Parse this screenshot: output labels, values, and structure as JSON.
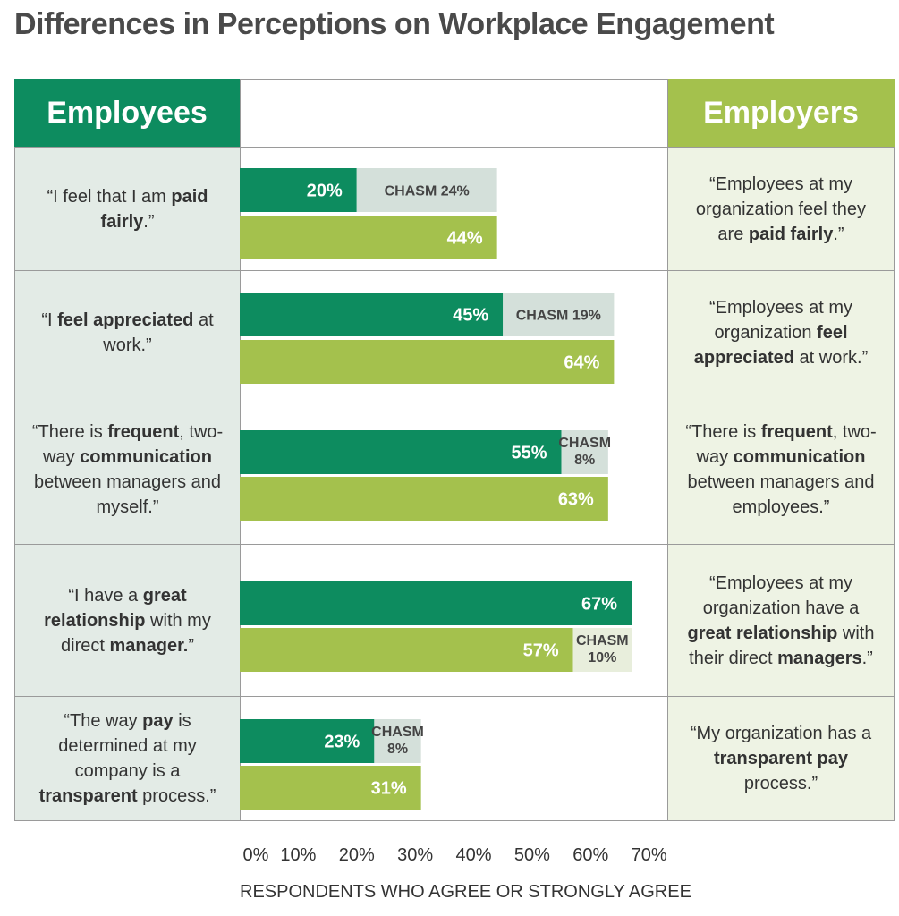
{
  "title": "Differences in Perceptions on Workplace Engagement",
  "headers": {
    "left": "Employees",
    "right": "Employers"
  },
  "rows": [
    {
      "employee_html": "“I feel that I am <b>paid fairly</b>.”",
      "employer_html": "“Employees at my organization feel they are <b>paid fairly</b>.”"
    },
    {
      "employee_html": "“I <b>feel appreciated</b> at work.”",
      "employer_html": "“Employees at my organization <b>feel appreciated</b> at work.”"
    },
    {
      "employee_html": "“There is <b>frequent</b>, two-way <b>communication</b> between managers and myself.”",
      "employer_html": "“There is <b>frequent</b>, two-way <b>communication</b> between managers and employees.”"
    },
    {
      "employee_html": "“I have a <b>great relationship</b> with my direct <b>manager.</b>”",
      "employer_html": "“Employees at my organization have a <b>great relationship</b> with their direct <b>managers</b>.”"
    },
    {
      "employee_html": "“The way <b>pay</b> is determined at my company is a <b>transparent</b> process.”",
      "employer_html": "“My organization has a <b>transparent pay</b> process.”"
    }
  ],
  "colors": {
    "employees": "#0d8c5f",
    "employers": "#a4c14d",
    "chasm": "#d4e0da",
    "chasm_light": "#e8eedc"
  },
  "chart_data": {
    "type": "bar",
    "orientation": "horizontal",
    "categories": [
      "“I feel that I am paid fairly.”",
      "“I feel appreciated at work.”",
      "“There is frequent, two-way communication between managers and myself.”",
      "“I have a great relationship with my direct manager.”",
      "“The way pay is determined at my company is a transparent process.”"
    ],
    "series": [
      {
        "name": "Employees",
        "values": [
          20,
          45,
          55,
          67,
          23
        ],
        "labels": [
          "20%",
          "45%",
          "55%",
          "67%",
          "23%"
        ]
      },
      {
        "name": "Employers",
        "values": [
          44,
          64,
          63,
          57,
          31
        ],
        "labels": [
          "44%",
          "64%",
          "63%",
          "57%",
          "31%"
        ]
      }
    ],
    "chasm": [
      {
        "value": 24,
        "label": "CHASM 24%"
      },
      {
        "value": 19,
        "label": "CHASM 19%"
      },
      {
        "value": 8,
        "label": "CHASM 8%"
      },
      {
        "value": 10,
        "label": "CHASM 10%"
      },
      {
        "value": 8,
        "label": "CHASM 8%"
      }
    ],
    "xlim": [
      0,
      70
    ],
    "xticks": [
      0,
      10,
      20,
      30,
      40,
      50,
      60,
      70
    ],
    "xtick_labels": [
      "0%",
      "10%",
      "20%",
      "30%",
      "40%",
      "50%",
      "60%",
      "70%"
    ],
    "xlabel": "RESPONDENTS WHO AGREE OR STRONGLY AGREE",
    "grid": false
  }
}
